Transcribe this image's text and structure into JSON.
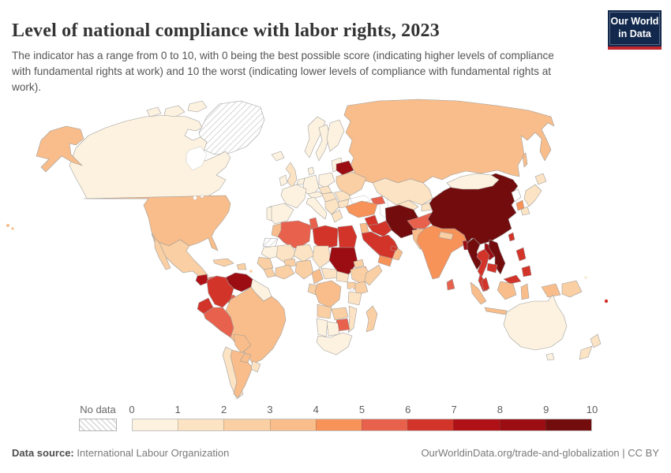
{
  "header": {
    "title": "Level of national compliance with labor rights, 2023",
    "subtitle": "The indicator has a range from 0 to 10, with 0 being the best possible score (indicating higher levels of compliance with fundamental rights at work) and 10 the worst (indicating lower levels of compliance with fundamental rights at work).",
    "logo_line1": "Our World",
    "logo_line2": "in Data",
    "logo_bg": "#12294d",
    "logo_accent": "#c0262c"
  },
  "footer": {
    "source_label": "Data source:",
    "source_value": " International Labour Organization",
    "link_text": "OurWorldinData.org/trade-and-globalization | CC BY"
  },
  "chart_data": {
    "type": "choropleth-map",
    "title": "Level of national compliance with labor rights, 2023",
    "value_range": [
      0,
      10
    ],
    "note": "bin i means indicator value between i and i+1; 'no-data' rendered hatched, 'none' rendered white",
    "legend": {
      "no_data_label": "No data",
      "tick_labels": [
        "0",
        "1",
        "2",
        "3",
        "4",
        "5",
        "6",
        "7",
        "8",
        "9",
        "10"
      ],
      "bin_colors": [
        "#fdf2df",
        "#fbe3c4",
        "#f9cfa3",
        "#f8bd8a",
        "#f79259",
        "#e8614d",
        "#d2342a",
        "#b01116",
        "#9b0d12",
        "#720c0d"
      ]
    },
    "regions": [
      {
        "id": "greenland",
        "name": "Greenland",
        "bin": "no-data"
      },
      {
        "id": "canada",
        "name": "Canada",
        "bin": 0
      },
      {
        "id": "united-states",
        "name": "United States",
        "bin": 3
      },
      {
        "id": "mexico",
        "name": "Mexico",
        "bin": 2
      },
      {
        "id": "guatemala",
        "name": "Guatemala",
        "bin": 7
      },
      {
        "id": "honduras",
        "name": "Honduras",
        "bin": 5
      },
      {
        "id": "nicaragua",
        "name": "Nicaragua",
        "bin": 5
      },
      {
        "id": "costa-rica",
        "name": "Costa Rica",
        "bin": 3
      },
      {
        "id": "panama",
        "name": "Panama",
        "bin": 5
      },
      {
        "id": "cuba",
        "name": "Cuba",
        "bin": 2
      },
      {
        "id": "hispaniola",
        "name": "Haiti / Dominican Rep.",
        "bin": 2
      },
      {
        "id": "caribbean",
        "name": "Lesser Antilles",
        "bin": 2
      },
      {
        "id": "venezuela",
        "name": "Venezuela",
        "bin": 8
      },
      {
        "id": "colombia",
        "name": "Colombia",
        "bin": 6
      },
      {
        "id": "guyanas",
        "name": "Guyana / Suriname",
        "bin": 0
      },
      {
        "id": "ecuador",
        "name": "Ecuador",
        "bin": 6
      },
      {
        "id": "peru",
        "name": "Peru",
        "bin": 5
      },
      {
        "id": "brazil",
        "name": "Brazil",
        "bin": 3
      },
      {
        "id": "bolivia",
        "name": "Bolivia",
        "bin": 3
      },
      {
        "id": "paraguay",
        "name": "Paraguay",
        "bin": 3
      },
      {
        "id": "chile",
        "name": "Chile",
        "bin": 1
      },
      {
        "id": "argentina",
        "name": "Argentina",
        "bin": 3
      },
      {
        "id": "uruguay",
        "name": "Uruguay",
        "bin": 1
      },
      {
        "id": "iceland",
        "name": "Iceland",
        "bin": 0
      },
      {
        "id": "united-kingdom",
        "name": "United Kingdom",
        "bin": 1
      },
      {
        "id": "ireland",
        "name": "Ireland",
        "bin": 0
      },
      {
        "id": "norway",
        "name": "Norway",
        "bin": 0
      },
      {
        "id": "sweden",
        "name": "Sweden",
        "bin": 0
      },
      {
        "id": "finland",
        "name": "Finland",
        "bin": 0
      },
      {
        "id": "denmark",
        "name": "Denmark",
        "bin": 0
      },
      {
        "id": "baltics",
        "name": "Baltic states",
        "bin": 0
      },
      {
        "id": "france",
        "name": "France",
        "bin": 0
      },
      {
        "id": "spain",
        "name": "Spain",
        "bin": 0
      },
      {
        "id": "portugal",
        "name": "Portugal",
        "bin": 0
      },
      {
        "id": "germany",
        "name": "Germany",
        "bin": 0
      },
      {
        "id": "benelux",
        "name": "Benelux",
        "bin": 0
      },
      {
        "id": "italy",
        "name": "Italy",
        "bin": 0
      },
      {
        "id": "alpine",
        "name": "Switzerland / Austria",
        "bin": 0
      },
      {
        "id": "poland",
        "name": "Poland",
        "bin": 0
      },
      {
        "id": "czech-slovakia",
        "name": "Czechia / Slovakia",
        "bin": 1
      },
      {
        "id": "hungary",
        "name": "Hungary",
        "bin": 1
      },
      {
        "id": "balkans",
        "name": "Western Balkans",
        "bin": 1
      },
      {
        "id": "greece",
        "name": "Greece",
        "bin": 1
      },
      {
        "id": "romania",
        "name": "Romania",
        "bin": 1
      },
      {
        "id": "bulgaria",
        "name": "Bulgaria",
        "bin": 1
      },
      {
        "id": "belarus",
        "name": "Belarus",
        "bin": 8
      },
      {
        "id": "ukraine",
        "name": "Ukraine",
        "bin": 2
      },
      {
        "id": "russia",
        "name": "Russia",
        "bin": 3
      },
      {
        "id": "kazakhstan",
        "name": "Kazakhstan",
        "bin": 1
      },
      {
        "id": "uzbekistan",
        "name": "Uzbekistan",
        "bin": 1
      },
      {
        "id": "turkmenistan",
        "name": "Turkmenistan",
        "bin": 5
      },
      {
        "id": "kyrgyzstan-tajikistan",
        "name": "Kyrgyzstan / Tajikistan",
        "bin": 1
      },
      {
        "id": "caucasus",
        "name": "Azerbaijan / Caucasus",
        "bin": 5
      },
      {
        "id": "turkey",
        "name": "Turkey",
        "bin": 4
      },
      {
        "id": "syria",
        "name": "Syria",
        "bin": 6
      },
      {
        "id": "iraq",
        "name": "Iraq",
        "bin": 6
      },
      {
        "id": "levant",
        "name": "Jordan / Levant",
        "bin": 3
      },
      {
        "id": "iran",
        "name": "Iran",
        "bin": 9
      },
      {
        "id": "saudi-arabia",
        "name": "Saudi Arabia",
        "bin": 6
      },
      {
        "id": "yemen",
        "name": "Yemen",
        "bin": 4
      },
      {
        "id": "oman",
        "name": "Oman",
        "bin": 3
      },
      {
        "id": "uae",
        "name": "United Arab Emirates",
        "bin": 6
      },
      {
        "id": "afghanistan",
        "name": "Afghanistan",
        "bin": 5
      },
      {
        "id": "pakistan",
        "name": "Pakistan",
        "bin": 3
      },
      {
        "id": "india",
        "name": "India",
        "bin": 4
      },
      {
        "id": "nepal",
        "name": "Nepal",
        "bin": 2
      },
      {
        "id": "bangladesh",
        "name": "Bangladesh",
        "bin": 8
      },
      {
        "id": "sri-lanka",
        "name": "Sri Lanka",
        "bin": 5
      },
      {
        "id": "china",
        "name": "China",
        "bin": 9
      },
      {
        "id": "mongolia",
        "name": "Mongolia",
        "bin": 0
      },
      {
        "id": "north-korea",
        "name": "North Korea",
        "bin": "none"
      },
      {
        "id": "south-korea",
        "name": "South Korea",
        "bin": 4
      },
      {
        "id": "japan",
        "name": "Japan",
        "bin": 1
      },
      {
        "id": "taiwan",
        "name": "Taiwan",
        "bin": 6
      },
      {
        "id": "myanmar",
        "name": "Myanmar",
        "bin": 9
      },
      {
        "id": "thailand",
        "name": "Thailand",
        "bin": 6
      },
      {
        "id": "laos",
        "name": "Laos",
        "bin": 8
      },
      {
        "id": "vietnam",
        "name": "Vietnam",
        "bin": 9
      },
      {
        "id": "cambodia",
        "name": "Cambodia",
        "bin": 6
      },
      {
        "id": "malaysia",
        "name": "Malaysia",
        "bin": 6
      },
      {
        "id": "indonesia",
        "name": "Indonesia",
        "bin": 3
      },
      {
        "id": "philippines",
        "name": "Philippines",
        "bin": 6
      },
      {
        "id": "papua-new-guinea",
        "name": "Papua New Guinea",
        "bin": 2
      },
      {
        "id": "solomon-islands",
        "name": "Solomon Islands",
        "bin": 1
      },
      {
        "id": "fiji",
        "name": "Fiji",
        "bin": 6
      },
      {
        "id": "australia",
        "name": "Australia",
        "bin": 0
      },
      {
        "id": "new-zealand",
        "name": "New Zealand",
        "bin": 1
      },
      {
        "id": "morocco",
        "name": "Morocco",
        "bin": 3
      },
      {
        "id": "western-sahara",
        "name": "Western Sahara",
        "bin": "no-data"
      },
      {
        "id": "algeria",
        "name": "Algeria",
        "bin": 5
      },
      {
        "id": "tunisia",
        "name": "Tunisia",
        "bin": 5
      },
      {
        "id": "libya",
        "name": "Libya",
        "bin": 6
      },
      {
        "id": "egypt",
        "name": "Egypt",
        "bin": 6
      },
      {
        "id": "mauritania",
        "name": "Mauritania",
        "bin": 0
      },
      {
        "id": "mali",
        "name": "Mali",
        "bin": 1
      },
      {
        "id": "niger",
        "name": "Niger",
        "bin": 1
      },
      {
        "id": "chad",
        "name": "Chad",
        "bin": 1
      },
      {
        "id": "sudan",
        "name": "Sudan",
        "bin": 8
      },
      {
        "id": "eritrea",
        "name": "Eritrea",
        "bin": 2
      },
      {
        "id": "djibouti",
        "name": "Djibouti",
        "bin": 6
      },
      {
        "id": "senegal-guinea",
        "name": "Senegal / Guinea",
        "bin": 2
      },
      {
        "id": "sierra-leone-liberia",
        "name": "Sierra Leone / Liberia",
        "bin": 2
      },
      {
        "id": "cote-divoire-ghana",
        "name": "Côte d'Ivoire / Ghana",
        "bin": 2
      },
      {
        "id": "burkina-faso",
        "name": "Burkina Faso",
        "bin": 2
      },
      {
        "id": "nigeria",
        "name": "Nigeria",
        "bin": 2
      },
      {
        "id": "cameroon",
        "name": "Cameroon",
        "bin": 3
      },
      {
        "id": "central-african-republic",
        "name": "Central African Rep.",
        "bin": 1
      },
      {
        "id": "south-sudan",
        "name": "South Sudan",
        "bin": 1
      },
      {
        "id": "ethiopia",
        "name": "Ethiopia",
        "bin": 2
      },
      {
        "id": "somalia",
        "name": "Somalia",
        "bin": 2
      },
      {
        "id": "kenya",
        "name": "Kenya",
        "bin": 2
      },
      {
        "id": "uganda",
        "name": "Uganda",
        "bin": 2
      },
      {
        "id": "dr-congo",
        "name": "Democratic Republic of Congo",
        "bin": 3
      },
      {
        "id": "gabon-congo",
        "name": "Gabon / Congo",
        "bin": 2
      },
      {
        "id": "tanzania",
        "name": "Tanzania",
        "bin": 1
      },
      {
        "id": "angola",
        "name": "Angola",
        "bin": 2
      },
      {
        "id": "zambia",
        "name": "Zambia",
        "bin": 2
      },
      {
        "id": "mozambique",
        "name": "Mozambique / Malawi",
        "bin": 1
      },
      {
        "id": "zimbabwe",
        "name": "Zimbabwe",
        "bin": 5
      },
      {
        "id": "botswana",
        "name": "Botswana",
        "bin": 0
      },
      {
        "id": "namibia",
        "name": "Namibia",
        "bin": 0
      },
      {
        "id": "south-africa",
        "name": "South Africa",
        "bin": 0
      },
      {
        "id": "madagascar",
        "name": "Madagascar",
        "bin": 2
      }
    ]
  }
}
